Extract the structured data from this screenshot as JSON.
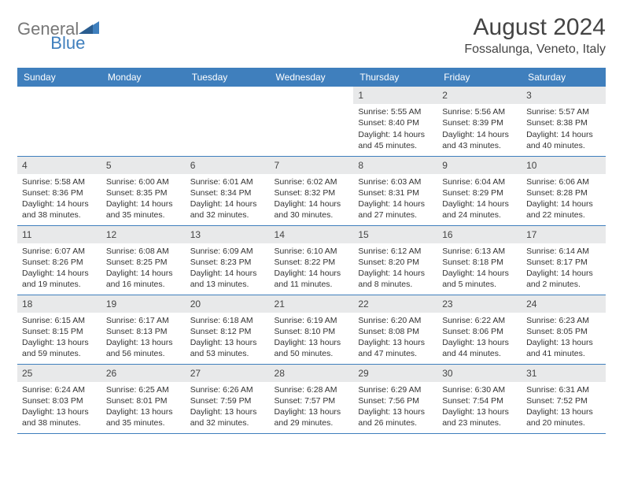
{
  "brand": {
    "part1": "General",
    "part2": "Blue"
  },
  "title": "August 2024",
  "location": "Fossalunga, Veneto, Italy",
  "colors": {
    "header_bg": "#3f7fbd",
    "daynum_bg": "#e8e9ea",
    "row_border": "#3f7fbd",
    "text": "#333333",
    "logo_gray": "#777777",
    "logo_blue": "#3f7fbd"
  },
  "weekdays": [
    "Sunday",
    "Monday",
    "Tuesday",
    "Wednesday",
    "Thursday",
    "Friday",
    "Saturday"
  ],
  "weeks": [
    [
      null,
      null,
      null,
      null,
      {
        "d": "1",
        "sr": "5:55 AM",
        "ss": "8:40 PM",
        "dl": "14 hours and 45 minutes."
      },
      {
        "d": "2",
        "sr": "5:56 AM",
        "ss": "8:39 PM",
        "dl": "14 hours and 43 minutes."
      },
      {
        "d": "3",
        "sr": "5:57 AM",
        "ss": "8:38 PM",
        "dl": "14 hours and 40 minutes."
      }
    ],
    [
      {
        "d": "4",
        "sr": "5:58 AM",
        "ss": "8:36 PM",
        "dl": "14 hours and 38 minutes."
      },
      {
        "d": "5",
        "sr": "6:00 AM",
        "ss": "8:35 PM",
        "dl": "14 hours and 35 minutes."
      },
      {
        "d": "6",
        "sr": "6:01 AM",
        "ss": "8:34 PM",
        "dl": "14 hours and 32 minutes."
      },
      {
        "d": "7",
        "sr": "6:02 AM",
        "ss": "8:32 PM",
        "dl": "14 hours and 30 minutes."
      },
      {
        "d": "8",
        "sr": "6:03 AM",
        "ss": "8:31 PM",
        "dl": "14 hours and 27 minutes."
      },
      {
        "d": "9",
        "sr": "6:04 AM",
        "ss": "8:29 PM",
        "dl": "14 hours and 24 minutes."
      },
      {
        "d": "10",
        "sr": "6:06 AM",
        "ss": "8:28 PM",
        "dl": "14 hours and 22 minutes."
      }
    ],
    [
      {
        "d": "11",
        "sr": "6:07 AM",
        "ss": "8:26 PM",
        "dl": "14 hours and 19 minutes."
      },
      {
        "d": "12",
        "sr": "6:08 AM",
        "ss": "8:25 PM",
        "dl": "14 hours and 16 minutes."
      },
      {
        "d": "13",
        "sr": "6:09 AM",
        "ss": "8:23 PM",
        "dl": "14 hours and 13 minutes."
      },
      {
        "d": "14",
        "sr": "6:10 AM",
        "ss": "8:22 PM",
        "dl": "14 hours and 11 minutes."
      },
      {
        "d": "15",
        "sr": "6:12 AM",
        "ss": "8:20 PM",
        "dl": "14 hours and 8 minutes."
      },
      {
        "d": "16",
        "sr": "6:13 AM",
        "ss": "8:18 PM",
        "dl": "14 hours and 5 minutes."
      },
      {
        "d": "17",
        "sr": "6:14 AM",
        "ss": "8:17 PM",
        "dl": "14 hours and 2 minutes."
      }
    ],
    [
      {
        "d": "18",
        "sr": "6:15 AM",
        "ss": "8:15 PM",
        "dl": "13 hours and 59 minutes."
      },
      {
        "d": "19",
        "sr": "6:17 AM",
        "ss": "8:13 PM",
        "dl": "13 hours and 56 minutes."
      },
      {
        "d": "20",
        "sr": "6:18 AM",
        "ss": "8:12 PM",
        "dl": "13 hours and 53 minutes."
      },
      {
        "d": "21",
        "sr": "6:19 AM",
        "ss": "8:10 PM",
        "dl": "13 hours and 50 minutes."
      },
      {
        "d": "22",
        "sr": "6:20 AM",
        "ss": "8:08 PM",
        "dl": "13 hours and 47 minutes."
      },
      {
        "d": "23",
        "sr": "6:22 AM",
        "ss": "8:06 PM",
        "dl": "13 hours and 44 minutes."
      },
      {
        "d": "24",
        "sr": "6:23 AM",
        "ss": "8:05 PM",
        "dl": "13 hours and 41 minutes."
      }
    ],
    [
      {
        "d": "25",
        "sr": "6:24 AM",
        "ss": "8:03 PM",
        "dl": "13 hours and 38 minutes."
      },
      {
        "d": "26",
        "sr": "6:25 AM",
        "ss": "8:01 PM",
        "dl": "13 hours and 35 minutes."
      },
      {
        "d": "27",
        "sr": "6:26 AM",
        "ss": "7:59 PM",
        "dl": "13 hours and 32 minutes."
      },
      {
        "d": "28",
        "sr": "6:28 AM",
        "ss": "7:57 PM",
        "dl": "13 hours and 29 minutes."
      },
      {
        "d": "29",
        "sr": "6:29 AM",
        "ss": "7:56 PM",
        "dl": "13 hours and 26 minutes."
      },
      {
        "d": "30",
        "sr": "6:30 AM",
        "ss": "7:54 PM",
        "dl": "13 hours and 23 minutes."
      },
      {
        "d": "31",
        "sr": "6:31 AM",
        "ss": "7:52 PM",
        "dl": "13 hours and 20 minutes."
      }
    ]
  ],
  "labels": {
    "sunrise": "Sunrise:",
    "sunset": "Sunset:",
    "daylight": "Daylight:"
  }
}
